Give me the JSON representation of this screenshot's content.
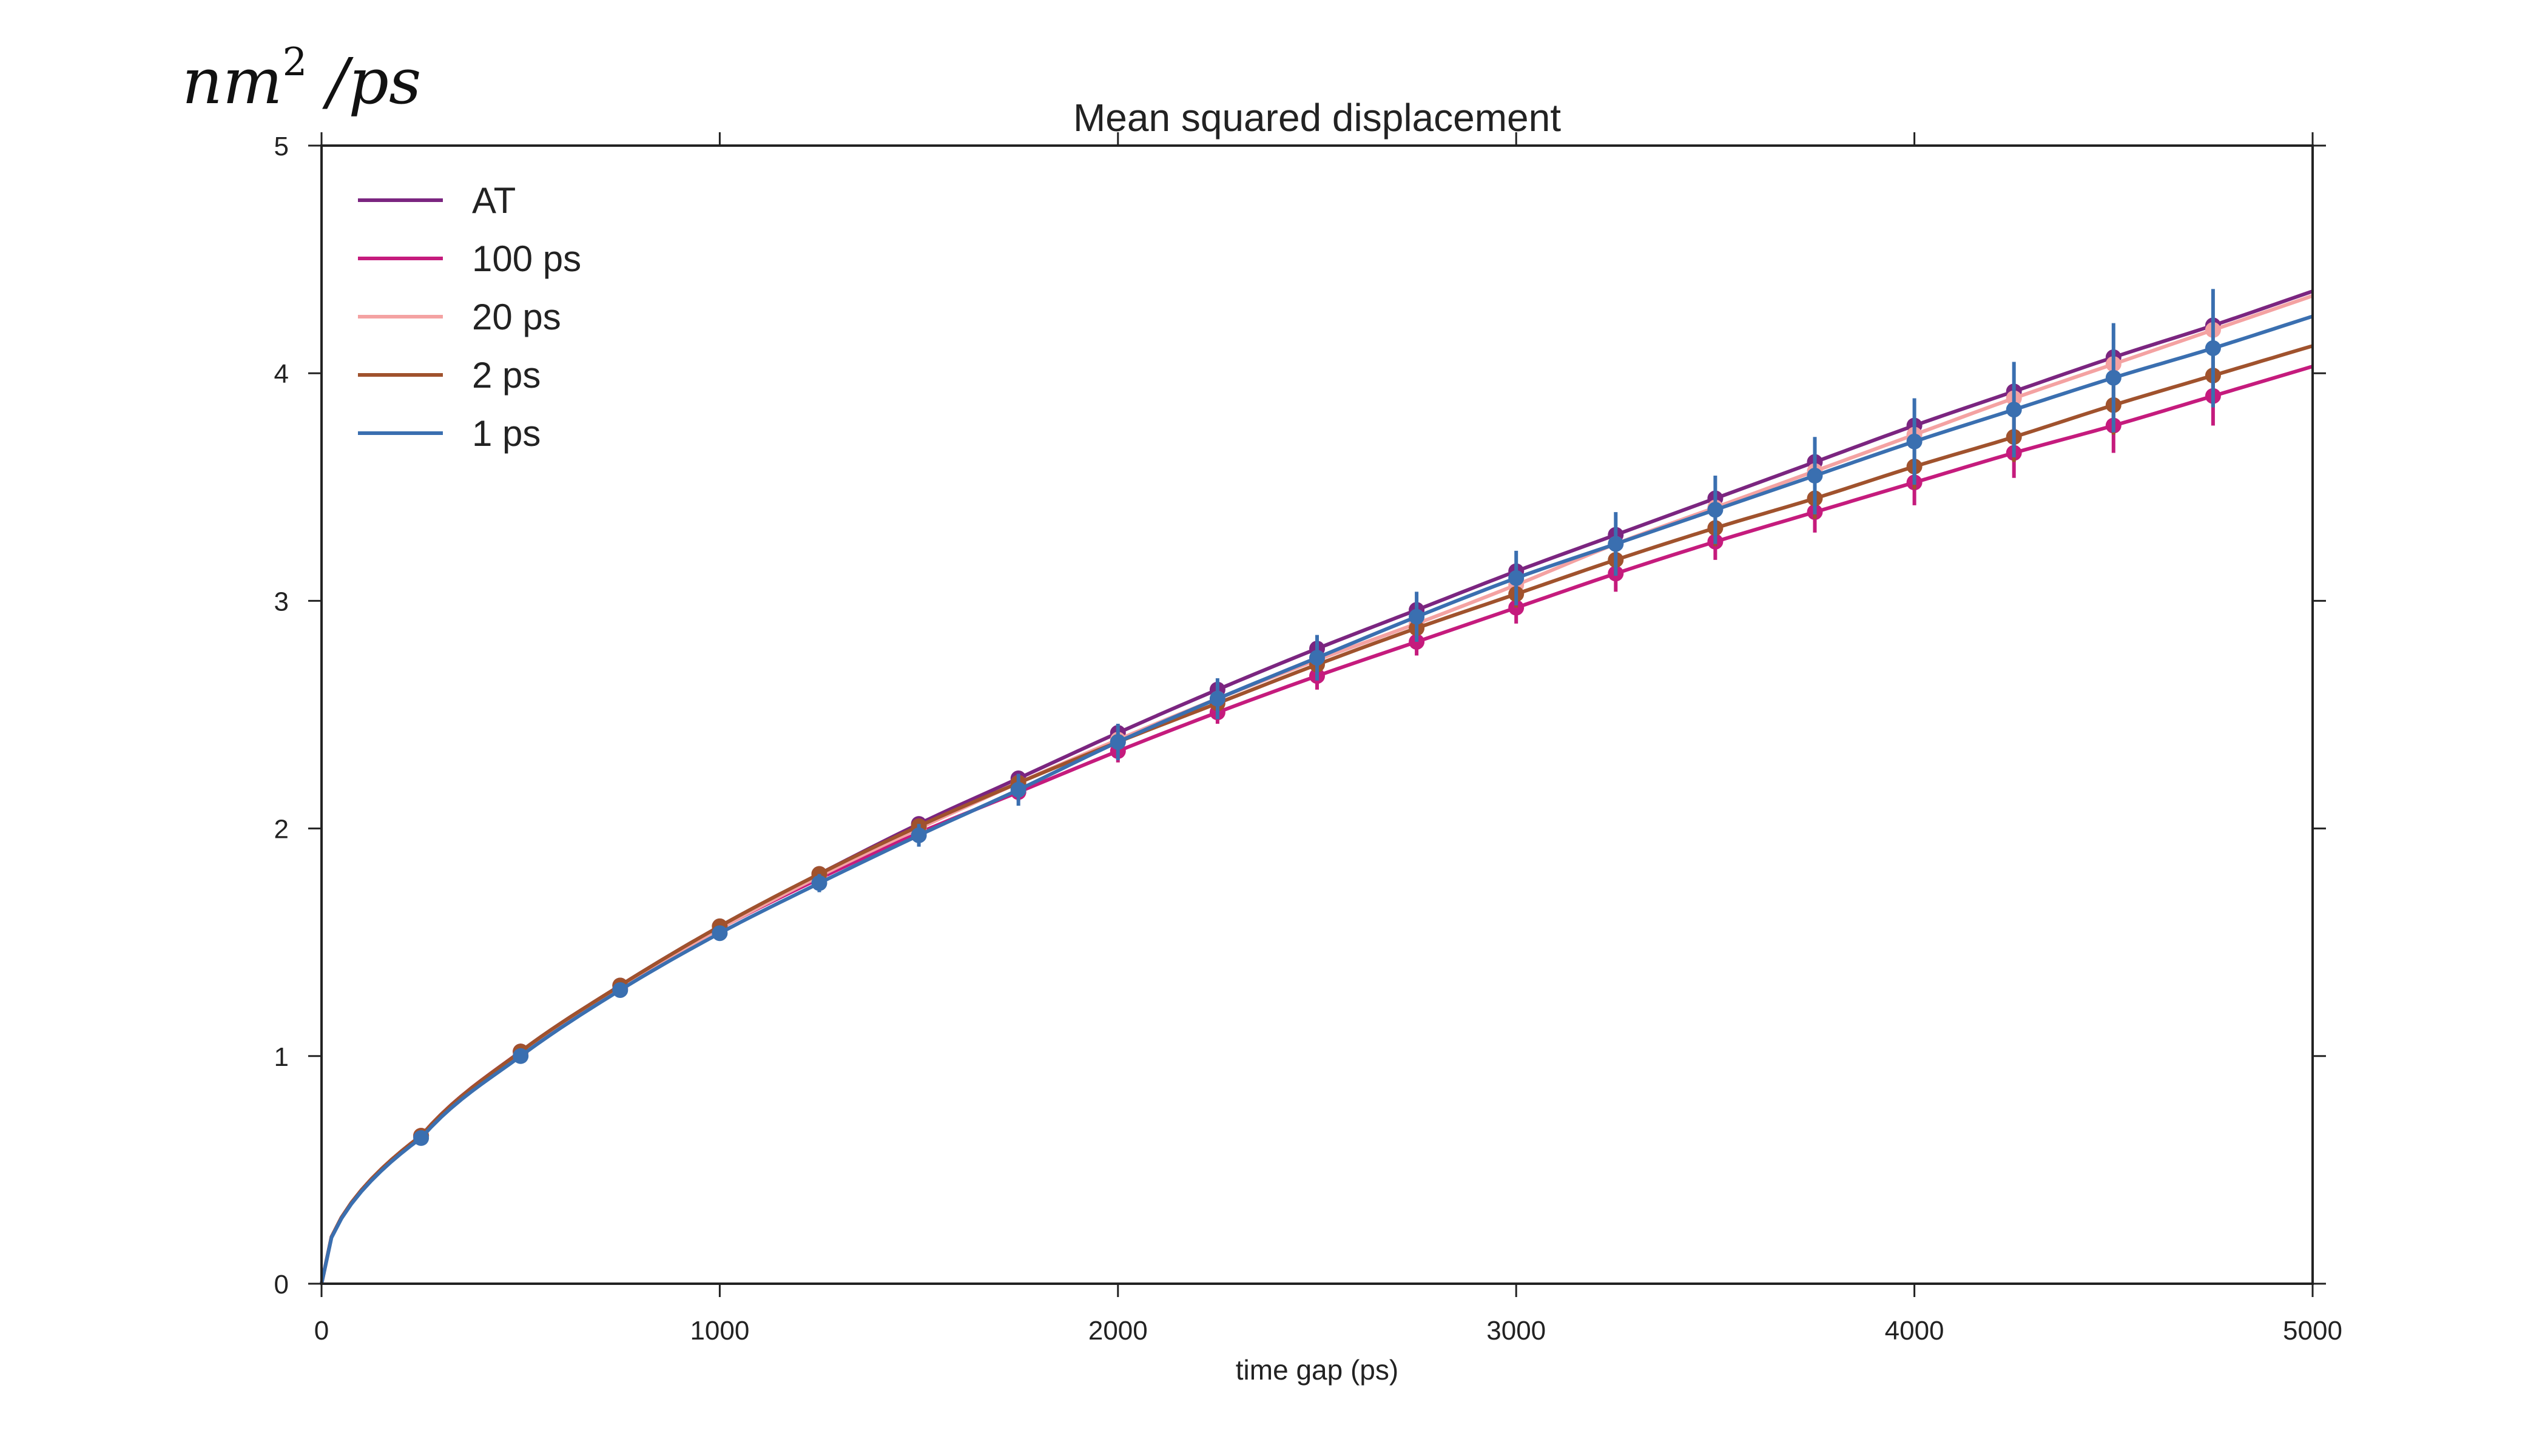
{
  "chart_data": {
    "type": "line",
    "title": "Mean squared displacement",
    "xlabel": "time gap (ps)",
    "ylabel_units": {
      "base": "nm",
      "sup": "2",
      "rest": " /ps"
    },
    "xlim": [
      0,
      5000
    ],
    "ylim": [
      0,
      5
    ],
    "x_ticks": [
      "0",
      "1000",
      "2000",
      "3000",
      "4000",
      "5000"
    ],
    "y_ticks": [
      "0",
      "1",
      "2",
      "3",
      "4",
      "5"
    ],
    "grid": false,
    "legend_position": "top-left",
    "series": [
      {
        "name": "AT",
        "color": "#7b2580",
        "x": [
          0,
          250,
          500,
          750,
          1000,
          1250,
          1500,
          1750,
          2000,
          2250,
          2500,
          2750,
          3000,
          3250,
          3500,
          3750,
          4000,
          4250,
          4500,
          4750,
          5000
        ],
        "y": [
          0,
          0.65,
          1.02,
          1.31,
          1.57,
          1.8,
          2.02,
          2.22,
          2.42,
          2.61,
          2.79,
          2.96,
          3.13,
          3.29,
          3.45,
          3.61,
          3.77,
          3.92,
          4.07,
          4.21,
          4.36
        ],
        "err": [
          0,
          0.01,
          0.01,
          0.01,
          0.01,
          0.01,
          0.01,
          0.01,
          0.01,
          0.01,
          0.01,
          0.01,
          0.01,
          0.01,
          0.01,
          0.01,
          0.01,
          0.01,
          0.01,
          0.01,
          0
        ]
      },
      {
        "name": "100 ps",
        "color": "#c51b7d",
        "x": [
          0,
          250,
          500,
          750,
          1000,
          1250,
          1500,
          1750,
          2000,
          2250,
          2500,
          2750,
          3000,
          3250,
          3500,
          3750,
          4000,
          4250,
          4500,
          4750,
          5000
        ],
        "y": [
          0,
          0.65,
          1.02,
          1.3,
          1.56,
          1.78,
          1.98,
          2.16,
          2.34,
          2.51,
          2.67,
          2.82,
          2.97,
          3.12,
          3.26,
          3.39,
          3.52,
          3.65,
          3.77,
          3.9,
          4.03
        ],
        "err": [
          0,
          0.01,
          0.01,
          0.02,
          0.02,
          0.03,
          0.04,
          0.04,
          0.05,
          0.05,
          0.06,
          0.06,
          0.07,
          0.08,
          0.08,
          0.09,
          0.1,
          0.11,
          0.12,
          0.13,
          0
        ]
      },
      {
        "name": "20 ps",
        "color": "#f4a2a2",
        "x": [
          0,
          250,
          500,
          750,
          1000,
          1250,
          1500,
          1750,
          2000,
          2250,
          2500,
          2750,
          3000,
          3250,
          3500,
          3750,
          4000,
          4250,
          4500,
          4750,
          5000
        ],
        "y": [
          0,
          0.65,
          1.01,
          1.3,
          1.56,
          1.79,
          2.0,
          2.2,
          2.39,
          2.57,
          2.74,
          2.9,
          3.07,
          3.25,
          3.41,
          3.57,
          3.73,
          3.89,
          4.04,
          4.19,
          4.34
        ],
        "err": [
          0,
          0.01,
          0.01,
          0.01,
          0.01,
          0.01,
          0.01,
          0.01,
          0.01,
          0.01,
          0.01,
          0.01,
          0.01,
          0.01,
          0.01,
          0.01,
          0.01,
          0.01,
          0.01,
          0.01,
          0
        ]
      },
      {
        "name": "2 ps",
        "color": "#a0522d",
        "x": [
          0,
          250,
          500,
          750,
          1000,
          1250,
          1500,
          1750,
          2000,
          2250,
          2500,
          2750,
          3000,
          3250,
          3500,
          3750,
          4000,
          4250,
          4500,
          4750,
          5000
        ],
        "y": [
          0,
          0.65,
          1.02,
          1.31,
          1.57,
          1.8,
          2.01,
          2.2,
          2.38,
          2.55,
          2.72,
          2.88,
          3.03,
          3.18,
          3.32,
          3.45,
          3.59,
          3.72,
          3.86,
          3.99,
          4.12
        ],
        "err": [
          0,
          0.01,
          0.01,
          0.01,
          0.02,
          0.02,
          0.03,
          0.03,
          0.04,
          0.04,
          0.05,
          0.06,
          0.06,
          0.07,
          0.08,
          0.09,
          0.1,
          0.11,
          0.13,
          0.14,
          0
        ]
      },
      {
        "name": "1 ps",
        "color": "#3a6fb0",
        "x": [
          0,
          250,
          500,
          750,
          1000,
          1250,
          1500,
          1750,
          2000,
          2250,
          2500,
          2750,
          3000,
          3250,
          3500,
          3750,
          4000,
          4250,
          4500,
          4750,
          5000
        ],
        "y": [
          0,
          0.64,
          1.0,
          1.29,
          1.54,
          1.76,
          1.97,
          2.17,
          2.38,
          2.57,
          2.75,
          2.93,
          3.1,
          3.25,
          3.4,
          3.55,
          3.7,
          3.84,
          3.98,
          4.11,
          4.25
        ],
        "err": [
          0,
          0.01,
          0.02,
          0.02,
          0.03,
          0.04,
          0.05,
          0.07,
          0.08,
          0.09,
          0.1,
          0.11,
          0.12,
          0.14,
          0.15,
          0.17,
          0.19,
          0.21,
          0.24,
          0.26,
          0
        ]
      }
    ]
  }
}
